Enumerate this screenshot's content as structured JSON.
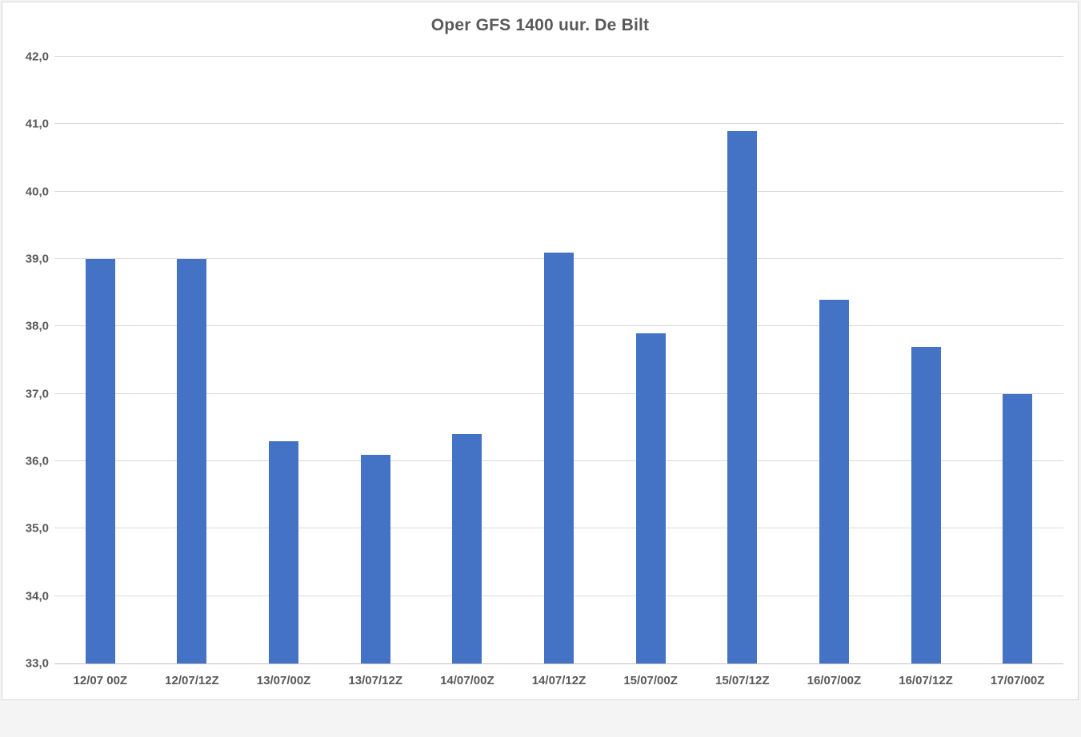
{
  "chart": {
    "title": "Oper GFS 1400 uur. De Bilt",
    "colors": {
      "bar": "#4472c4",
      "gridline": "#d9d9d9",
      "axis_line": "#bfbfbf",
      "text": "#595959",
      "panel_background": "#ffffff",
      "page_background": "#f4f4f5",
      "panel_border": "#d9d9d9"
    }
  },
  "chart_data": {
    "type": "bar",
    "title": "Oper GFS 1400 uur. De Bilt",
    "categories": [
      "12/07 00Z",
      "12/07/12Z",
      "13/07/00Z",
      "13/07/12Z",
      "14/07/00Z",
      "14/07/12Z",
      "15/07/00Z",
      "15/07/12Z",
      "16/07/00Z",
      "16/07/12Z",
      "17/07/00Z"
    ],
    "values": [
      39.0,
      39.0,
      36.3,
      36.1,
      36.4,
      39.1,
      37.9,
      40.9,
      38.4,
      37.7,
      37.0
    ],
    "xlabel": "",
    "ylabel": "",
    "ylim": [
      33.0,
      42.0
    ],
    "ytick_step": 1.0,
    "ytick_labels": [
      "33,0",
      "34,0",
      "35,0",
      "36,0",
      "37,0",
      "38,0",
      "39,0",
      "40,0",
      "41,0",
      "42,0"
    ],
    "grid": true,
    "legend_position": "none",
    "bar_color": "#4472c4"
  }
}
